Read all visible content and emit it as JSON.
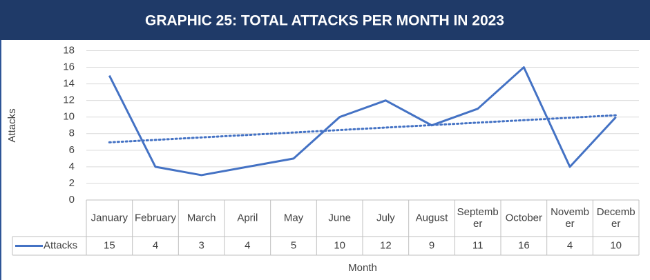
{
  "chart_data": {
    "type": "line",
    "title": "GRAPHIC 25: TOTAL ATTACKS PER MONTH IN 2023",
    "x_label": "Month",
    "y_label": "Attacks",
    "categories": [
      "January",
      "February",
      "March",
      "April",
      "May",
      "June",
      "July",
      "August",
      "September",
      "October",
      "November",
      "December"
    ],
    "series": [
      {
        "name": "Attacks",
        "color": "#4472c4",
        "values": [
          15,
          4,
          3,
          4,
          5,
          10,
          12,
          9,
          11,
          16,
          4,
          10
        ]
      }
    ],
    "ylim": [
      0,
      18
    ],
    "yticks": [
      0,
      2,
      4,
      6,
      8,
      10,
      12,
      14,
      16,
      18
    ],
    "grid": true,
    "trendline": "linear",
    "data_table": true
  }
}
